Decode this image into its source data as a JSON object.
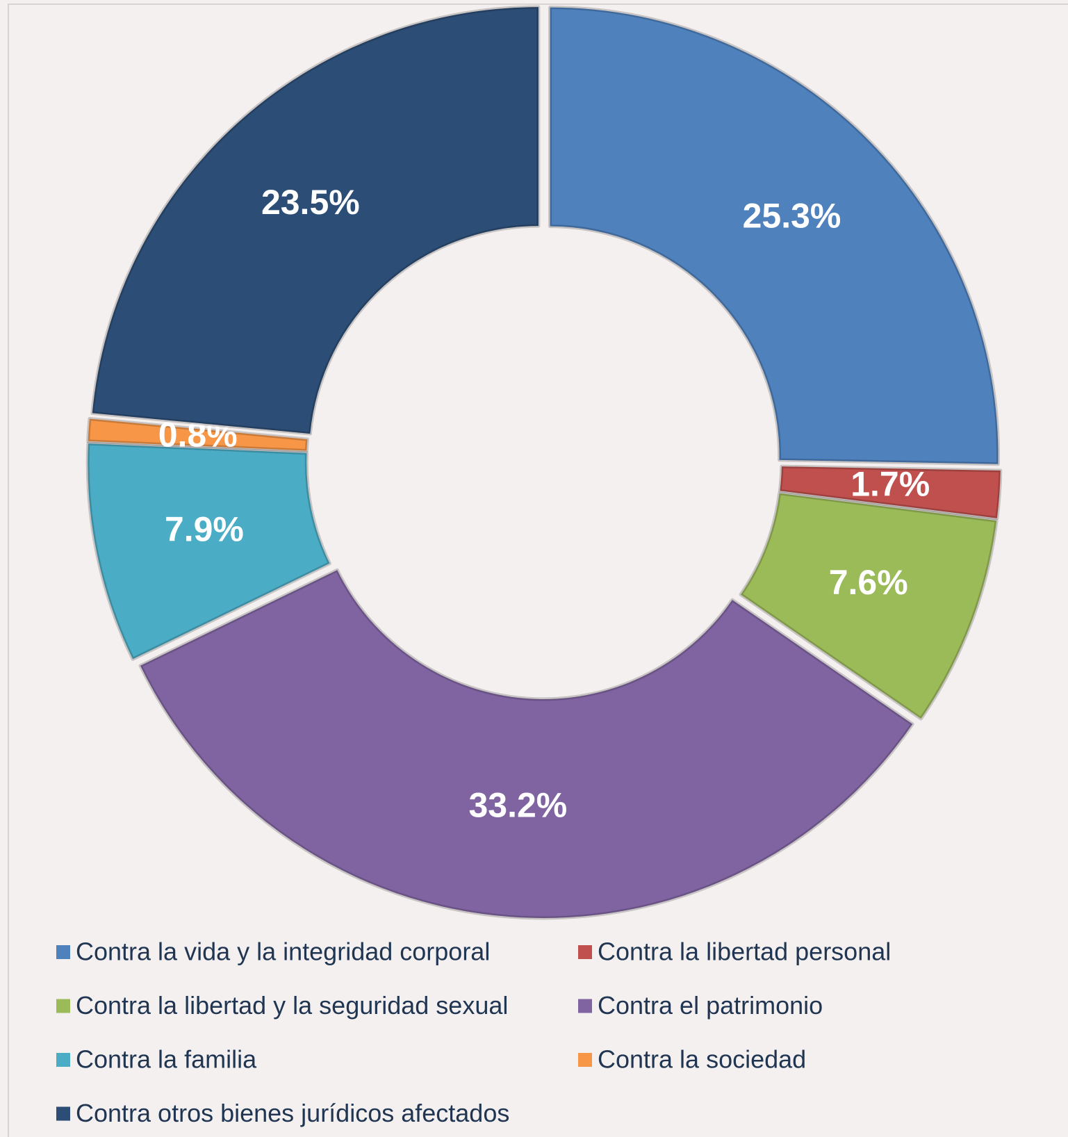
{
  "chart_data": {
    "type": "donut",
    "categories": [
      "Contra la vida y la integridad corporal",
      "Contra la libertad personal",
      "Contra la libertad y la seguridad sexual",
      "Contra el patrimonio",
      "Contra la familia",
      "Contra la sociedad",
      "Contra otros bienes jurídicos afectados"
    ],
    "values": [
      25.3,
      1.7,
      7.6,
      33.2,
      7.9,
      0.8,
      23.5
    ],
    "value_labels": [
      "25.3%",
      "1.7%",
      "7.6%",
      "33.2%",
      "7.9%",
      "0.8%",
      "23.5%"
    ],
    "colors": [
      "#4f81bd",
      "#c0504d",
      "#9bbb59",
      "#8064a2",
      "#4bacc6",
      "#f79646",
      "#2c4d75"
    ],
    "legend": "bottom"
  }
}
